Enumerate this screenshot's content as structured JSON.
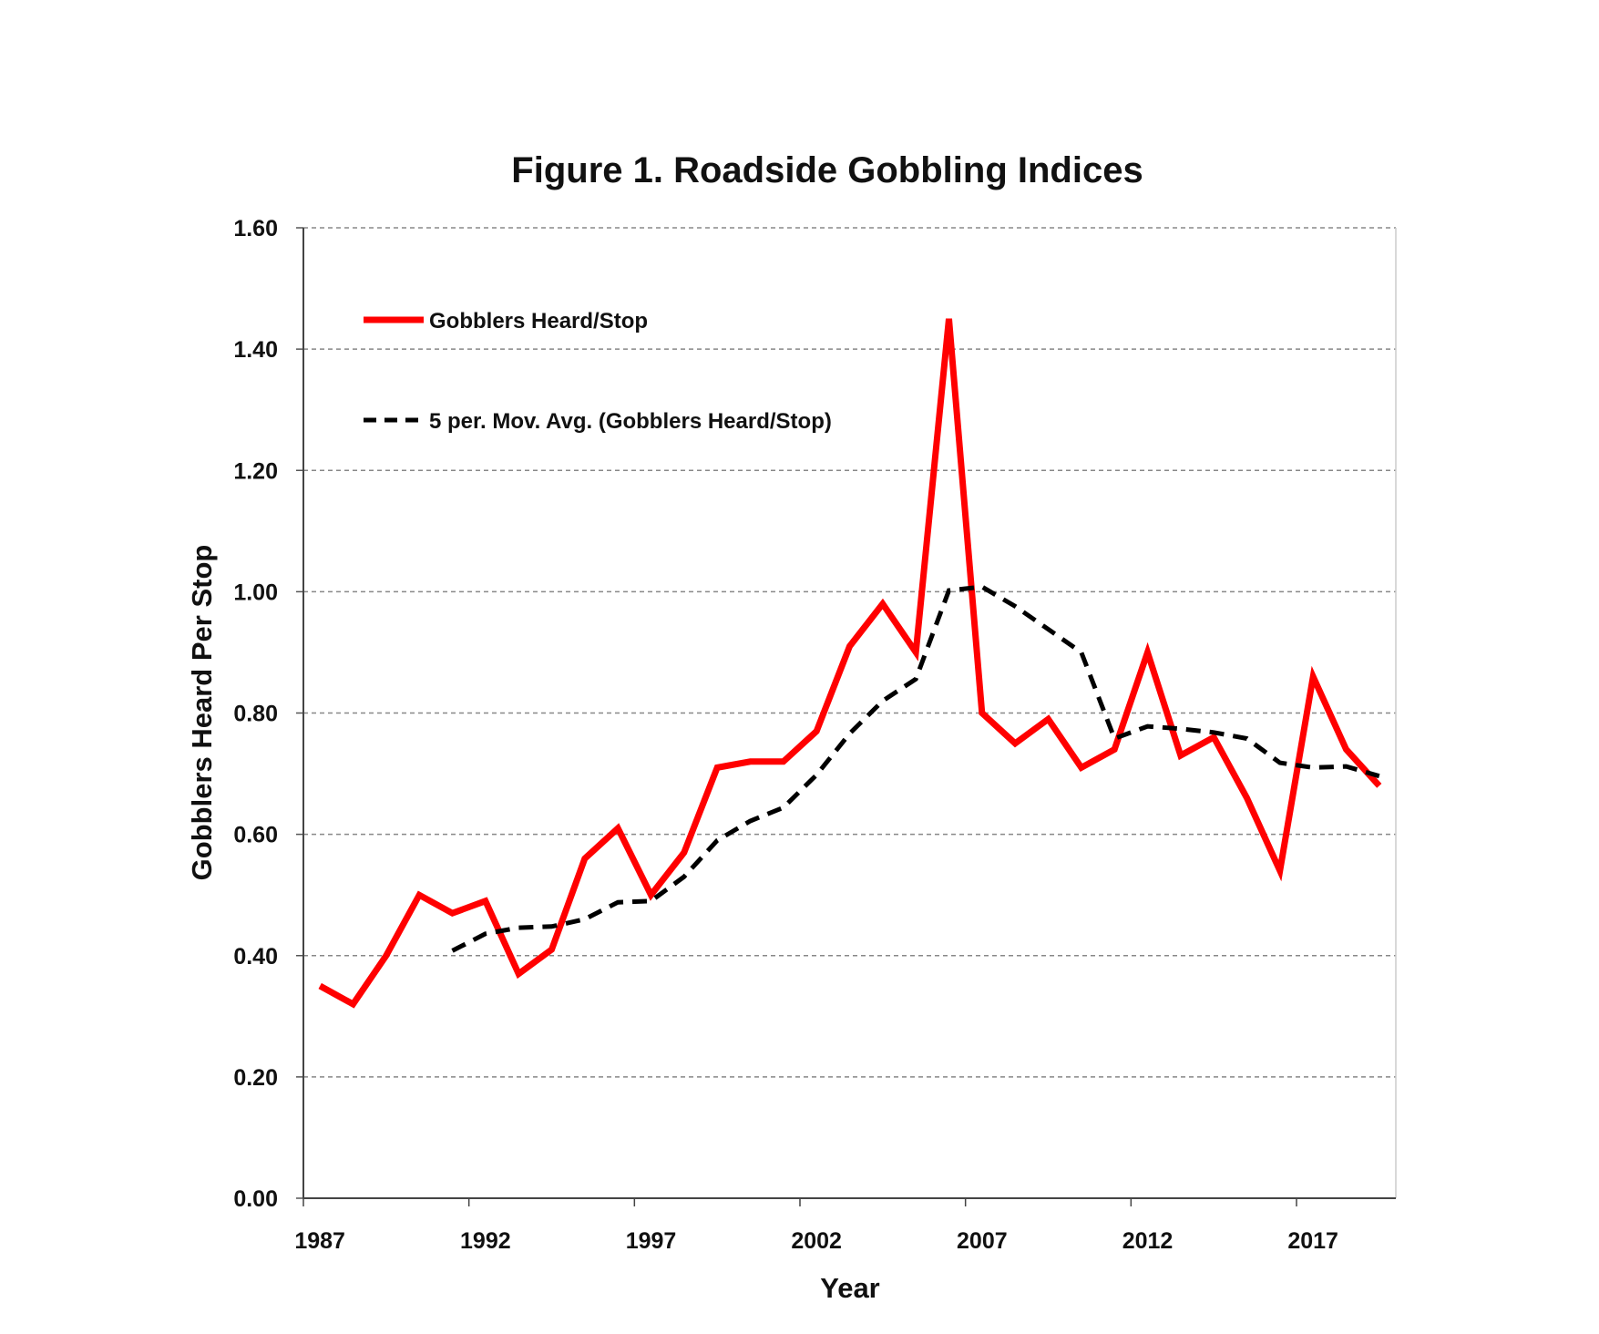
{
  "chart_data": {
    "type": "line",
    "title": "Figure 1. Roadside Gobbling Indices",
    "xlabel": "Year",
    "ylabel": "Gobblers Heard Per Stop",
    "ylim": [
      0,
      1.6
    ],
    "yticks": [
      "0.00",
      "0.20",
      "0.40",
      "0.60",
      "0.80",
      "1.00",
      "1.20",
      "1.40",
      "1.60"
    ],
    "xtick_labels": [
      "1987",
      "1992",
      "1997",
      "2002",
      "2007",
      "2012",
      "2017"
    ],
    "grid": "horizontal dashed",
    "legend_position": "top-left",
    "x": [
      1987,
      1988,
      1989,
      1990,
      1991,
      1992,
      1993,
      1994,
      1995,
      1996,
      1997,
      1998,
      1999,
      2000,
      2001,
      2002,
      2003,
      2004,
      2005,
      2006,
      2007,
      2008,
      2009,
      2010,
      2011,
      2012,
      2013,
      2014,
      2015,
      2016,
      2017,
      2018,
      2019
    ],
    "series": [
      {
        "name": "Gobblers Heard/Stop",
        "color": "#ff0000",
        "style": "solid",
        "values": [
          0.35,
          0.32,
          0.4,
          0.5,
          0.47,
          0.49,
          0.37,
          0.41,
          0.56,
          0.61,
          0.5,
          0.57,
          0.71,
          0.72,
          0.72,
          0.77,
          0.91,
          0.98,
          0.9,
          1.45,
          0.8,
          0.75,
          0.79,
          0.71,
          0.74,
          0.9,
          0.73,
          0.76,
          0.66,
          0.54,
          0.86,
          0.74,
          0.68
        ]
      },
      {
        "name": "5 per. Mov. Avg. (Gobblers Heard/Stop)",
        "color": "#000000",
        "style": "dashed",
        "values": [
          null,
          null,
          null,
          null,
          0.408,
          0.436,
          0.446,
          0.448,
          0.46,
          0.488,
          0.49,
          0.53,
          0.59,
          0.622,
          0.644,
          0.698,
          0.766,
          0.82,
          0.856,
          1.002,
          1.008,
          0.976,
          0.938,
          0.9,
          0.758,
          0.778,
          0.774,
          0.768,
          0.758,
          0.718,
          0.71,
          0.712,
          0.696
        ]
      }
    ]
  }
}
